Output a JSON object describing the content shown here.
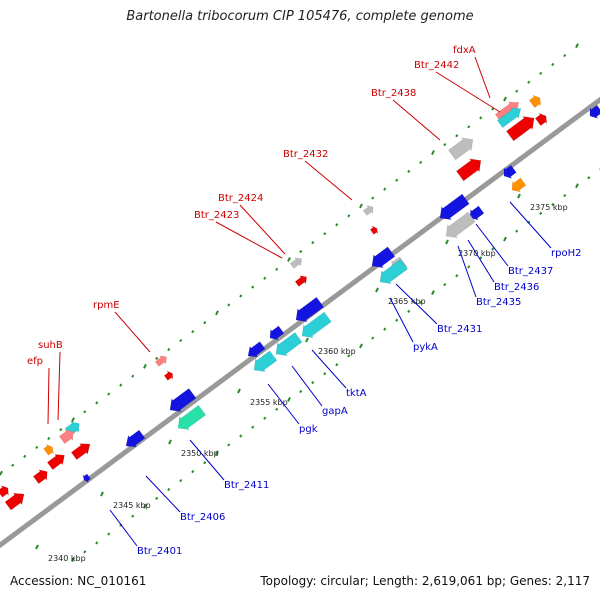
{
  "title": "Bartonella tribocorum CIP 105476, complete genome",
  "footer": {
    "accession": "Accession: NC_010161",
    "summary": "Topology: circular; Length: 2,619,061 bp; Genes: 2,117"
  },
  "colors": {
    "backbone": "#888888",
    "forward_label": "#cc0000",
    "reverse_label": "#0000cc",
    "dot_track": "#2a8a2a",
    "red": "#ee0000",
    "blue": "#1414e0",
    "cyan": "#2ccfd6",
    "teal": "#28e0a8",
    "gray": "#bdbdbd",
    "orange": "#ff9000",
    "pink": "#ff8080"
  },
  "ticks": [
    "2340 kbp",
    "2345 kbp",
    "2350 kbp",
    "2355 kbp",
    "2360 kbp",
    "2365 kbp",
    "2370 kbp",
    "2375 kbp"
  ],
  "forward_labels": [
    "fdxA",
    "Btr_2442",
    "Btr_2438",
    "Btr_2432",
    "Btr_2424",
    "Btr_2423",
    "rpmE",
    "suhB",
    "efp"
  ],
  "reverse_labels": [
    "rpoH2",
    "Btr_2437",
    "Btr_2436",
    "Btr_2435",
    "Btr_2431",
    "pykA",
    "tktA",
    "gapA",
    "pgk",
    "Btr_2411",
    "Btr_2406",
    "Btr_2401"
  ]
}
